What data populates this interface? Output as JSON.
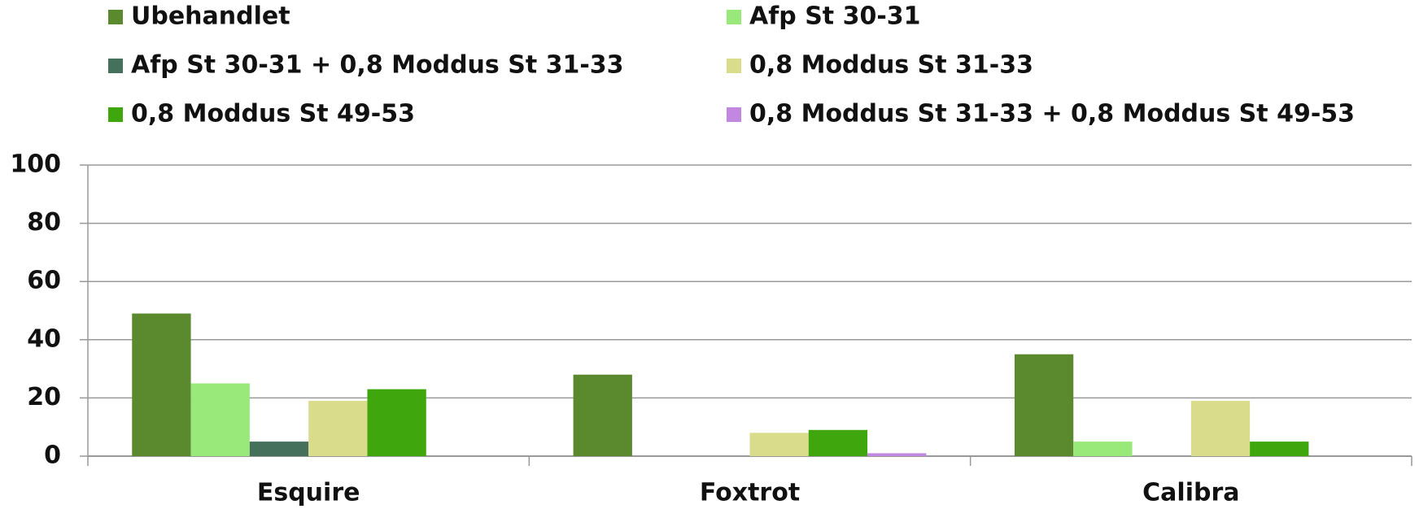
{
  "chart_data": {
    "type": "bar",
    "categories": [
      "Esquire",
      "Foxtrot",
      "Calibra"
    ],
    "series": [
      {
        "name": "Ubehandlet",
        "color": "#5b8a2e",
        "values": [
          49,
          28,
          35
        ]
      },
      {
        "name": "Afp St 30-31",
        "color": "#99e87a",
        "values": [
          25,
          null,
          5
        ]
      },
      {
        "name": "Afp St 30-31 + 0,8 Moddus St 31-33",
        "color": "#44705c",
        "values": [
          5,
          null,
          null
        ]
      },
      {
        "name": "0,8 Moddus St 31-33",
        "color": "#d9dc8a",
        "values": [
          19,
          8,
          19
        ]
      },
      {
        "name": "0,8 Moddus St 49-53",
        "color": "#3fa60e",
        "values": [
          23,
          9,
          5
        ]
      },
      {
        "name": "0,8 Moddus St 31-33 + 0,8 Moddus St 49-53",
        "color": "#c287e0",
        "values": [
          null,
          1,
          null
        ]
      }
    ],
    "ylim": [
      0,
      100
    ],
    "yticks": [
      0,
      20,
      40,
      60,
      80,
      100
    ],
    "grid": true
  }
}
